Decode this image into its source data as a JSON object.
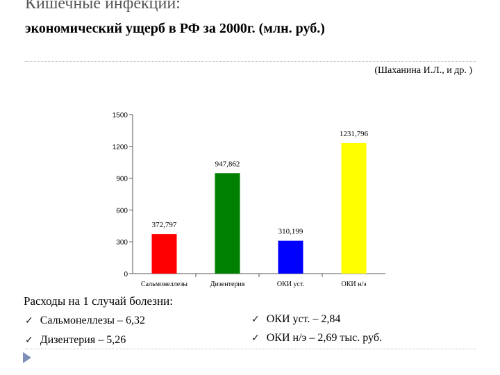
{
  "header": {
    "title": "Кишечные инфекции:",
    "subtitle": "экономический ущерб в РФ за 2000г. (млн. руб.)",
    "citation": "(Шаханина И.Л., и др. )"
  },
  "chart_data": {
    "type": "bar",
    "categories": [
      "Сальмонеллезы",
      "Дизентерия",
      "ОКИ уст.",
      "ОКИ н/э"
    ],
    "values": [
      372.797,
      947.862,
      310.199,
      1231.796
    ],
    "data_labels": [
      "372,797",
      "947,862",
      "310,199",
      "1231,796"
    ],
    "colors": [
      "#ff0000",
      "#008000",
      "#0000ff",
      "#ffff00"
    ],
    "yticks": [
      "0",
      "300",
      "600",
      "900",
      "1200",
      "1500"
    ],
    "ylim": [
      0,
      1500
    ],
    "title": "",
    "xlabel": "",
    "ylabel": ""
  },
  "costs": {
    "title": "Расходы на 1 случай болезни:",
    "items": [
      "Сальмонеллезы – 6,32",
      "Дизентерия – 5,26",
      "ОКИ уст. – 2,84",
      "ОКИ н/э – 2,69 тыс. руб."
    ],
    "check_icon": "✓"
  }
}
